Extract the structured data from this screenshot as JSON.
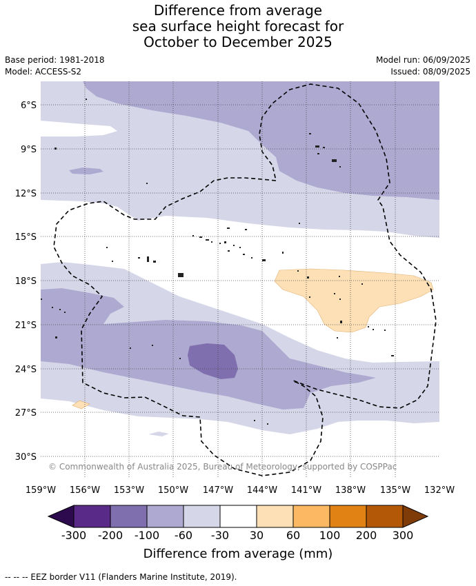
{
  "title": {
    "line1": "Difference from average",
    "line2": "sea surface height forecast for",
    "line3": "October to December 2025"
  },
  "meta_left": {
    "base_period": "Base period: 1981-2018",
    "model": "Model: ACCESS-S2"
  },
  "meta_right": {
    "model_run": "Model run: 06/09/2025",
    "issued": "Issued: 08/09/2025"
  },
  "map": {
    "lon_ticks": [
      "159°W",
      "156°W",
      "153°W",
      "150°W",
      "147°W",
      "144°W",
      "141°W",
      "138°W",
      "135°W",
      "132°W"
    ],
    "lat_ticks": [
      "6°S",
      "9°S",
      "12°S",
      "15°S",
      "18°S",
      "21°S",
      "24°S",
      "27°S",
      "30°S"
    ],
    "credit": "© Commonwealth of Australia 2025, Bureau of Meteorology, supported by COSPPac",
    "lon_range": [
      -159,
      -132
    ],
    "lat_range": [
      -31.5,
      -4.5
    ]
  },
  "colorbar": {
    "label": "Difference from average (mm)",
    "ticks": [
      "-300",
      "-200",
      "-100",
      "-60",
      "-30",
      "30",
      "60",
      "100",
      "200",
      "300"
    ],
    "colors": [
      "#2d0a4e",
      "#5a2a88",
      "#7f6fae",
      "#aea9d1",
      "#d6d6e9",
      "#ffffff",
      "#fee0b6",
      "#fdb863",
      "#e08214",
      "#b35806",
      "#7f3b08"
    ]
  },
  "footnote": "--  --  -- EEZ border V11 (Flanders Marine Institute, 2019)."
}
